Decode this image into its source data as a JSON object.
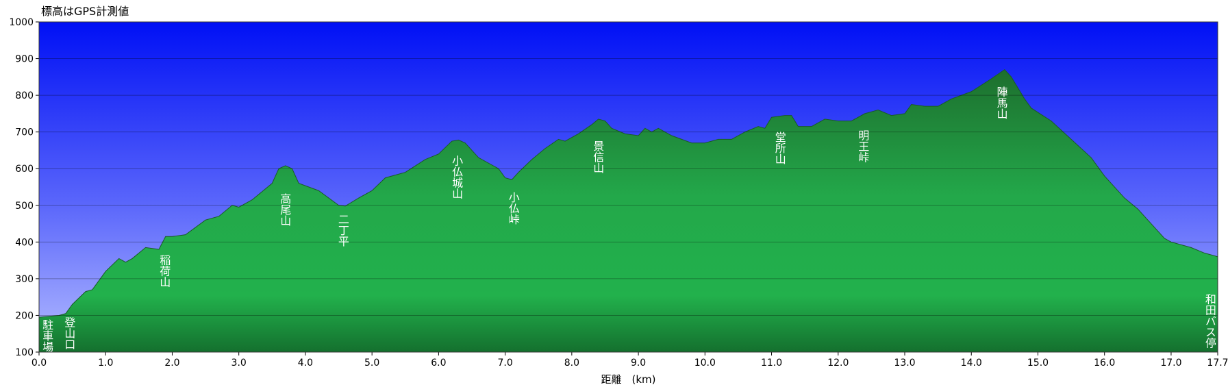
{
  "chart_data": {
    "type": "area",
    "title": "標高はGPS計測値",
    "x_label": "距離　(km)",
    "x": [
      0.0,
      0.3,
      0.4,
      0.5,
      0.7,
      0.8,
      1.0,
      1.2,
      1.3,
      1.4,
      1.6,
      1.8,
      1.9,
      2.0,
      2.2,
      2.5,
      2.7,
      2.9,
      3.0,
      3.2,
      3.5,
      3.6,
      3.7,
      3.8,
      3.9,
      4.2,
      4.5,
      4.6,
      4.8,
      5.0,
      5.2,
      5.5,
      5.8,
      6.0,
      6.2,
      6.3,
      6.4,
      6.6,
      6.9,
      7.0,
      7.1,
      7.2,
      7.4,
      7.6,
      7.8,
      7.9,
      8.1,
      8.3,
      8.4,
      8.5,
      8.6,
      8.8,
      9.0,
      9.1,
      9.2,
      9.3,
      9.5,
      9.8,
      10.0,
      10.2,
      10.4,
      10.6,
      10.8,
      10.9,
      11.0,
      11.2,
      11.3,
      11.4,
      11.6,
      11.8,
      12.0,
      12.2,
      12.4,
      12.6,
      12.8,
      13.0,
      13.1,
      13.3,
      13.5,
      13.7,
      14.0,
      14.3,
      14.5,
      14.6,
      14.8,
      14.9,
      15.2,
      15.5,
      15.8,
      16.0,
      16.3,
      16.5,
      16.7,
      16.9,
      17.0,
      17.3,
      17.5,
      17.7
    ],
    "values": [
      195,
      200,
      205,
      230,
      265,
      270,
      320,
      355,
      345,
      355,
      385,
      380,
      415,
      415,
      420,
      460,
      470,
      500,
      495,
      515,
      560,
      600,
      608,
      600,
      560,
      540,
      500,
      498,
      520,
      540,
      575,
      590,
      625,
      640,
      675,
      678,
      670,
      630,
      600,
      575,
      570,
      590,
      625,
      655,
      680,
      675,
      695,
      720,
      735,
      730,
      710,
      695,
      690,
      710,
      700,
      710,
      690,
      670,
      670,
      680,
      680,
      700,
      715,
      710,
      740,
      745,
      745,
      715,
      715,
      735,
      730,
      730,
      750,
      760,
      745,
      750,
      775,
      770,
      770,
      790,
      810,
      845,
      870,
      850,
      790,
      765,
      730,
      680,
      630,
      580,
      520,
      490,
      450,
      410,
      400,
      385,
      370,
      360
    ],
    "xlim": [
      0,
      17.7
    ],
    "ylim": [
      100,
      1000
    ],
    "xticks": [
      {
        "value": 0,
        "label": "0.0"
      },
      {
        "value": 1,
        "label": "1.0"
      },
      {
        "value": 2,
        "label": "2.0"
      },
      {
        "value": 3,
        "label": "3.0"
      },
      {
        "value": 4,
        "label": "4.0"
      },
      {
        "value": 5,
        "label": "5.0"
      },
      {
        "value": 6,
        "label": "6.0"
      },
      {
        "value": 7,
        "label": "7.0"
      },
      {
        "value": 8,
        "label": "8.0"
      },
      {
        "value": 9,
        "label": "9.0"
      },
      {
        "value": 10,
        "label": "10.0"
      },
      {
        "value": 11,
        "label": "11.0"
      },
      {
        "value": 12,
        "label": "12.0"
      },
      {
        "value": 13,
        "label": "13.0"
      },
      {
        "value": 14,
        "label": "14.0"
      },
      {
        "value": 15,
        "label": "15.0"
      },
      {
        "value": 16,
        "label": "16.0"
      },
      {
        "value": 17,
        "label": "17.0"
      },
      17.7
    ],
    "yticks": [
      100,
      200,
      300,
      400,
      500,
      600,
      700,
      800,
      900,
      1000
    ],
    "grid": true,
    "color": "#22b14c",
    "annotations": [
      "駐車場",
      "登山口",
      "稲荷山",
      "高尾山",
      "二丁平",
      "小仏城山",
      "小仏峠",
      "景信山",
      "堂所山",
      "明王峠",
      "陣馬山",
      "和田バス停"
    ]
  }
}
